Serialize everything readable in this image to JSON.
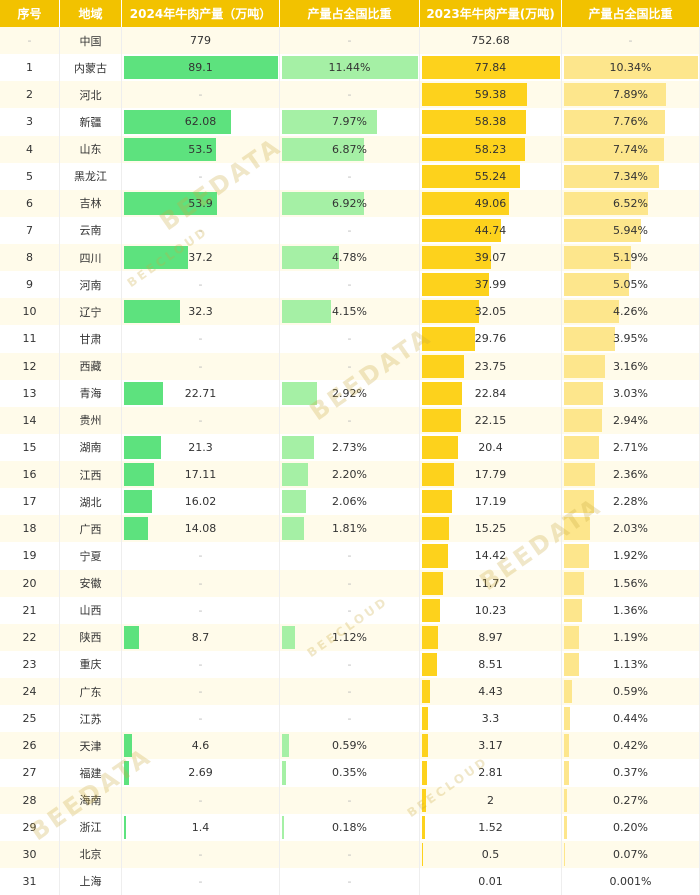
{
  "header": [
    "序号",
    "地域",
    "2024年牛肉产量（万吨）",
    "产量占全国比重",
    "2023年牛肉产量(万吨)",
    "产量占全国比重"
  ],
  "table": {
    "rows": [
      [
        "-",
        "中国",
        "779",
        "-",
        "752.68",
        "-"
      ],
      [
        "1",
        "内蒙古",
        "89.1",
        "11.44%",
        "77.84",
        "10.34%"
      ],
      [
        "2",
        "河北",
        "-",
        "-",
        "59.38",
        "7.89%"
      ],
      [
        "3",
        "新疆",
        "62.08",
        "7.97%",
        "58.38",
        "7.76%"
      ],
      [
        "4",
        "山东",
        "53.5",
        "6.87%",
        "58.23",
        "7.74%"
      ],
      [
        "5",
        "黑龙江",
        "-",
        "-",
        "55.24",
        "7.34%"
      ],
      [
        "6",
        "吉林",
        "53.9",
        "6.92%",
        "49.06",
        "6.52%"
      ],
      [
        "7",
        "云南",
        "-",
        "-",
        "44.74",
        "5.94%"
      ],
      [
        "8",
        "四川",
        "37.2",
        "4.78%",
        "39.07",
        "5.19%"
      ],
      [
        "9",
        "河南",
        "-",
        "-",
        "37.99",
        "5.05%"
      ],
      [
        "10",
        "辽宁",
        "32.3",
        "4.15%",
        "32.05",
        "4.26%"
      ],
      [
        "11",
        "甘肃",
        "-",
        "-",
        "29.76",
        "3.95%"
      ],
      [
        "12",
        "西藏",
        "-",
        "-",
        "23.75",
        "3.16%"
      ],
      [
        "13",
        "青海",
        "22.71",
        "2.92%",
        "22.84",
        "3.03%"
      ],
      [
        "14",
        "贵州",
        "-",
        "-",
        "22.15",
        "2.94%"
      ],
      [
        "15",
        "湖南",
        "21.3",
        "2.73%",
        "20.4",
        "2.71%"
      ],
      [
        "16",
        "江西",
        "17.11",
        "2.20%",
        "17.79",
        "2.36%"
      ],
      [
        "17",
        "湖北",
        "16.02",
        "2.06%",
        "17.19",
        "2.28%"
      ],
      [
        "18",
        "广西",
        "14.08",
        "1.81%",
        "15.25",
        "2.03%"
      ],
      [
        "19",
        "宁夏",
        "-",
        "-",
        "14.42",
        "1.92%"
      ],
      [
        "20",
        "安徽",
        "-",
        "-",
        "11.72",
        "1.56%"
      ],
      [
        "21",
        "山西",
        "-",
        "-",
        "10.23",
        "1.36%"
      ],
      [
        "22",
        "陕西",
        "8.7",
        "1.12%",
        "8.97",
        "1.19%"
      ],
      [
        "23",
        "重庆",
        "-",
        "-",
        "8.51",
        "1.13%"
      ],
      [
        "24",
        "广东",
        "-",
        "-",
        "4.43",
        "0.59%"
      ],
      [
        "25",
        "江苏",
        "-",
        "-",
        "3.3",
        "0.44%"
      ],
      [
        "26",
        "天津",
        "4.6",
        "0.59%",
        "3.17",
        "0.42%"
      ],
      [
        "27",
        "福建",
        "2.69",
        "0.35%",
        "2.81",
        "0.37%"
      ],
      [
        "28",
        "海南",
        "-",
        "-",
        "2",
        "0.27%"
      ],
      [
        "29",
        "浙江",
        "1.4",
        "0.18%",
        "1.52",
        "0.20%"
      ],
      [
        "30",
        "北京",
        "-",
        "-",
        "0.5",
        "0.07%"
      ],
      [
        "31",
        "上海",
        "-",
        "-",
        "0.01",
        "0.001%"
      ]
    ]
  },
  "watermark": [
    "BEEDATA",
    "BEECLOUD"
  ]
}
